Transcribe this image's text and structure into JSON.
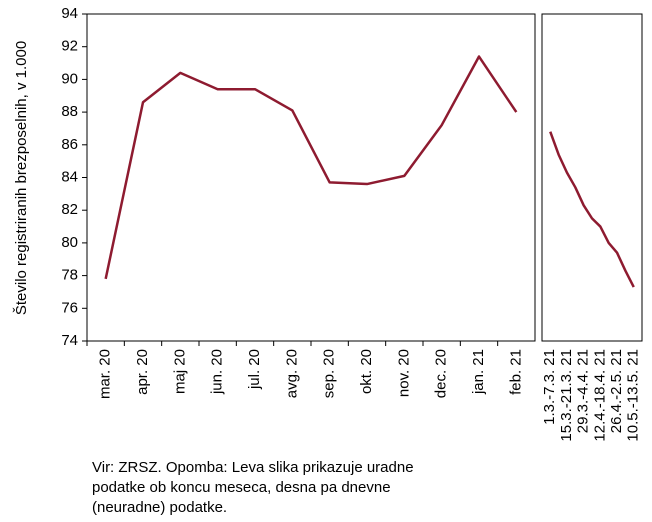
{
  "chart_data": [
    {
      "type": "line",
      "ylabel": "Število registriranih brezposelnih, v 1.000",
      "categories": [
        "mar. 20",
        "apr. 20",
        "maj 20",
        "jun. 20",
        "jul. 20",
        "avg. 20",
        "sep. 20",
        "okt. 20",
        "nov. 20",
        "dec. 20",
        "jan. 21",
        "feb. 21"
      ],
      "values": [
        77.8,
        88.6,
        90.4,
        89.4,
        89.4,
        88.1,
        83.7,
        83.6,
        84.1,
        87.2,
        91.4,
        88.0
      ],
      "color": "#8e1b30",
      "ylim": [
        74,
        94
      ],
      "yticks": [
        74,
        76,
        78,
        80,
        82,
        84,
        86,
        88,
        90,
        92,
        94
      ]
    },
    {
      "type": "line",
      "categories": [
        "1.3.-7.3. 21",
        null,
        "15.3.-21.3. 21",
        null,
        "29.3.-4.4. 21",
        null,
        "12.4.-18.4. 21",
        null,
        "26.4.-2.5. 21",
        null,
        "10.5.-13.5. 21"
      ],
      "values": [
        86.8,
        85.4,
        84.3,
        83.4,
        82.3,
        81.5,
        81.0,
        80.0,
        79.4,
        78.3,
        77.3
      ],
      "color": "#8e1b30",
      "ylim": [
        74,
        94
      ]
    }
  ],
  "note": [
    "Vir: ZRSZ. Opomba: Leva slika prikazuje uradne",
    "podatke ob koncu meseca, desna pa dnevne",
    "(neuradne) podatke."
  ]
}
